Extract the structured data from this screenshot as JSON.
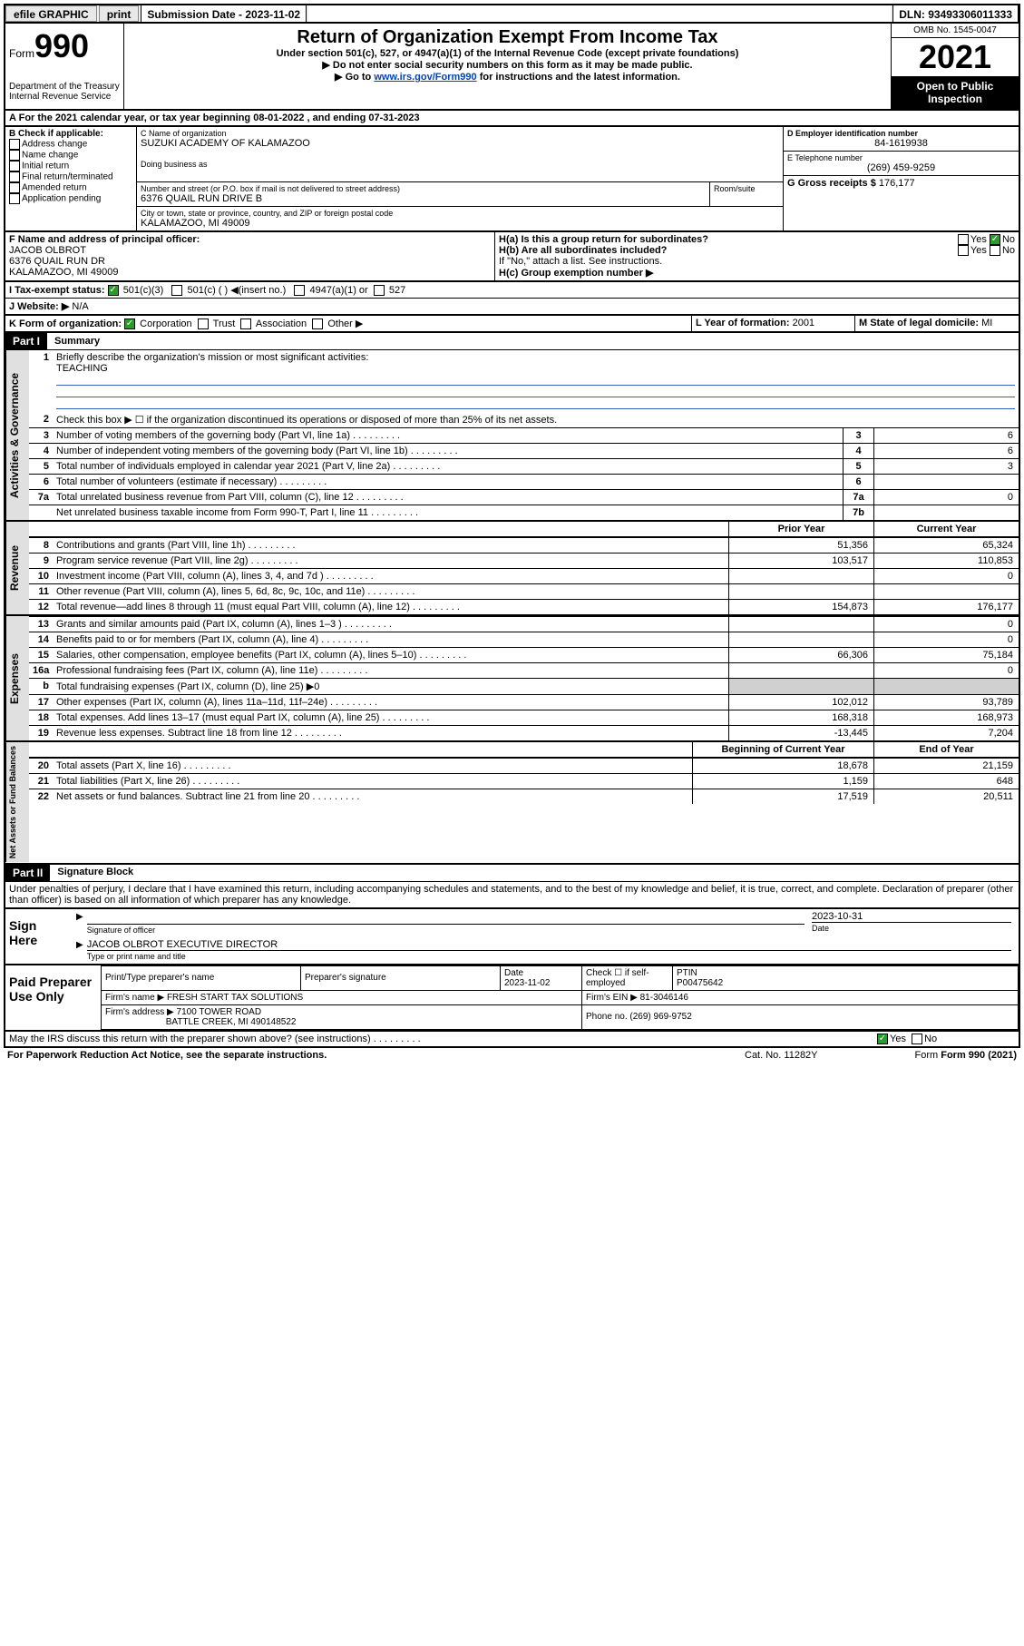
{
  "topbar": {
    "efile": "efile GRAPHIC",
    "print": "print",
    "sub_label": "Submission Date - 2023-11-02",
    "dln": "DLN: 93493306011333"
  },
  "header": {
    "form_label": "Form",
    "form_num": "990",
    "dept": "Department of the Treasury\nInternal Revenue Service",
    "title": "Return of Organization Exempt From Income Tax",
    "subtitle": "Under section 501(c), 527, or 4947(a)(1) of the Internal Revenue Code (except private foundations)",
    "note1": "▶ Do not enter social security numbers on this form as it may be made public.",
    "note2_pre": "▶ Go to ",
    "note2_link": "www.irs.gov/Form990",
    "note2_post": " for instructions and the latest information.",
    "omb": "OMB No. 1545-0047",
    "year": "2021",
    "inspect": "Open to Public Inspection"
  },
  "periodA": "For the 2021 calendar year, or tax year beginning 08-01-2022   , and ending 07-31-2023",
  "boxB": {
    "label": "B Check if applicable:",
    "opts": [
      "Address change",
      "Name change",
      "Initial return",
      "Final return/terminated",
      "Amended return",
      "Application pending"
    ]
  },
  "boxC": {
    "name_label": "C Name of organization",
    "name": "SUZUKI ACADEMY OF KALAMAZOO",
    "dba_label": "Doing business as",
    "addr_label": "Number and street (or P.O. box if mail is not delivered to street address)",
    "room_label": "Room/suite",
    "addr": "6376 QUAIL RUN DRIVE B",
    "city_label": "City or town, state or province, country, and ZIP or foreign postal code",
    "city": "KALAMAZOO, MI  49009"
  },
  "boxD": {
    "label": "D Employer identification number",
    "val": "84-1619938"
  },
  "boxE": {
    "label": "E Telephone number",
    "val": "(269) 459-9259"
  },
  "boxG": {
    "label": "G Gross receipts $",
    "val": "176,177"
  },
  "boxF": {
    "label": "F  Name and address of principal officer:",
    "name": "JACOB OLBROT",
    "addr1": "6376 QUAIL RUN DR",
    "addr2": "KALAMAZOO, MI  49009"
  },
  "boxH": {
    "a_label": "H(a)  Is this a group return for subordinates?",
    "b_label": "H(b)  Are all subordinates included?",
    "b_note": "If \"No,\" attach a list. See instructions.",
    "c_label": "H(c)  Group exemption number ▶",
    "yes": "Yes",
    "no": "No"
  },
  "boxI": {
    "label": "I   Tax-exempt status:",
    "o1": "501(c)(3)",
    "o2": "501(c) (  ) ◀(insert no.)",
    "o3": "4947(a)(1) or",
    "o4": "527"
  },
  "boxJ": {
    "label": "J   Website: ▶",
    "val": "N/A"
  },
  "boxK": {
    "label": "K Form of organization:",
    "opts": [
      "Corporation",
      "Trust",
      "Association",
      "Other ▶"
    ]
  },
  "boxL": {
    "label": "L Year of formation:",
    "val": "2001"
  },
  "boxM": {
    "label": "M State of legal domicile:",
    "val": "MI"
  },
  "part1": {
    "hdr": "Part I",
    "title": "Summary",
    "l1": "Briefly describe the organization's mission or most significant activities:",
    "l1v": "TEACHING",
    "l2": "Check this box ▶ ☐  if the organization discontinued its operations or disposed of more than 25% of its net assets.",
    "rows_top": [
      {
        "n": "3",
        "d": "Number of voting members of the governing body (Part VI, line 1a)",
        "k": "3",
        "v": "6"
      },
      {
        "n": "4",
        "d": "Number of independent voting members of the governing body (Part VI, line 1b)",
        "k": "4",
        "v": "6"
      },
      {
        "n": "5",
        "d": "Total number of individuals employed in calendar year 2021 (Part V, line 2a)",
        "k": "5",
        "v": "3"
      },
      {
        "n": "6",
        "d": "Total number of volunteers (estimate if necessary)",
        "k": "6",
        "v": ""
      },
      {
        "n": "7a",
        "d": "Total unrelated business revenue from Part VIII, column (C), line 12",
        "k": "7a",
        "v": "0"
      },
      {
        "n": "",
        "d": "Net unrelated business taxable income from Form 990-T, Part I, line 11",
        "k": "7b",
        "v": ""
      }
    ],
    "col_prior": "Prior Year",
    "col_curr": "Current Year",
    "revenue_rows": [
      {
        "n": "8",
        "d": "Contributions and grants (Part VIII, line 1h)",
        "p": "51,356",
        "c": "65,324"
      },
      {
        "n": "9",
        "d": "Program service revenue (Part VIII, line 2g)",
        "p": "103,517",
        "c": "110,853"
      },
      {
        "n": "10",
        "d": "Investment income (Part VIII, column (A), lines 3, 4, and 7d )",
        "p": "",
        "c": "0"
      },
      {
        "n": "11",
        "d": "Other revenue (Part VIII, column (A), lines 5, 6d, 8c, 9c, 10c, and 11e)",
        "p": "",
        "c": ""
      },
      {
        "n": "12",
        "d": "Total revenue—add lines 8 through 11 (must equal Part VIII, column (A), line 12)",
        "p": "154,873",
        "c": "176,177"
      }
    ],
    "expense_rows": [
      {
        "n": "13",
        "d": "Grants and similar amounts paid (Part IX, column (A), lines 1–3 )",
        "p": "",
        "c": "0"
      },
      {
        "n": "14",
        "d": "Benefits paid to or for members (Part IX, column (A), line 4)",
        "p": "",
        "c": "0"
      },
      {
        "n": "15",
        "d": "Salaries, other compensation, employee benefits (Part IX, column (A), lines 5–10)",
        "p": "66,306",
        "c": "75,184"
      },
      {
        "n": "16a",
        "d": "Professional fundraising fees (Part IX, column (A), line 11e)",
        "p": "",
        "c": "0"
      },
      {
        "n": "b",
        "d": "Total fundraising expenses (Part IX, column (D), line 25) ▶0",
        "p": "",
        "c": "",
        "shade": true
      },
      {
        "n": "17",
        "d": "Other expenses (Part IX, column (A), lines 11a–11d, 11f–24e)",
        "p": "102,012",
        "c": "93,789"
      },
      {
        "n": "18",
        "d": "Total expenses. Add lines 13–17 (must equal Part IX, column (A), line 25)",
        "p": "168,318",
        "c": "168,973"
      },
      {
        "n": "19",
        "d": "Revenue less expenses. Subtract line 18 from line 12",
        "p": "-13,445",
        "c": "7,204"
      }
    ],
    "col_begin": "Beginning of Current Year",
    "col_end": "End of Year",
    "asset_rows": [
      {
        "n": "20",
        "d": "Total assets (Part X, line 16)",
        "p": "18,678",
        "c": "21,159"
      },
      {
        "n": "21",
        "d": "Total liabilities (Part X, line 26)",
        "p": "1,159",
        "c": "648"
      },
      {
        "n": "22",
        "d": "Net assets or fund balances. Subtract line 21 from line 20",
        "p": "17,519",
        "c": "20,511"
      }
    ],
    "vtabs": {
      "ag": "Activities & Governance",
      "rev": "Revenue",
      "exp": "Expenses",
      "na": "Net Assets or\nFund Balances"
    }
  },
  "part2": {
    "hdr": "Part II",
    "title": "Signature Block",
    "decl": "Under penalties of perjury, I declare that I have examined this return, including accompanying schedules and statements, and to the best of my knowledge and belief, it is true, correct, and complete. Declaration of preparer (other than officer) is based on all information of which preparer has any knowledge.",
    "sign_here": "Sign Here",
    "sig_officer": "Signature of officer",
    "date": "Date",
    "sig_date": "2023-10-31",
    "officer_name": "JACOB OLBROT  EXECUTIVE DIRECTOR",
    "type_name": "Type or print name and title",
    "paid": "Paid Preparer Use Only",
    "col_prep": "Print/Type preparer's name",
    "col_sig": "Preparer's signature",
    "col_date": "Date",
    "col_check": "Check ☐ if self-employed",
    "col_ptin": "PTIN",
    "prep_date": "2023-11-02",
    "ptin": "P00475642",
    "firm_name_l": "Firm's name   ▶",
    "firm_name": "FRESH START TAX SOLUTIONS",
    "firm_ein_l": "Firm's EIN ▶",
    "firm_ein": "81-3046146",
    "firm_addr_l": "Firm's address ▶",
    "firm_addr1": "7100 TOWER ROAD",
    "firm_addr2": "BATTLE CREEK, MI  490148522",
    "phone_l": "Phone no.",
    "phone": "(269) 969-9752",
    "discuss": "May the IRS discuss this return with the preparer shown above? (see instructions)",
    "yes": "Yes",
    "no": "No"
  },
  "footer": {
    "pra": "For Paperwork Reduction Act Notice, see the separate instructions.",
    "cat": "Cat. No. 11282Y",
    "ver": "Form 990 (2021)"
  },
  "colors": {
    "link": "#0645ad"
  }
}
